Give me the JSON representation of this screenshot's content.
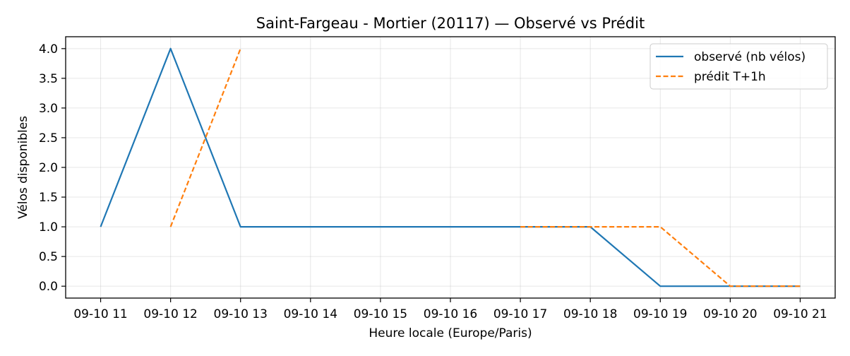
{
  "chart_data": {
    "type": "line",
    "title": "Saint-Fargeau - Mortier (20117) — Observé vs Prédit",
    "xlabel": "Heure locale (Europe/Paris)",
    "ylabel": "Vélos disponibles",
    "x_ticks": [
      "09-10 11",
      "09-10 12",
      "09-10 13",
      "09-10 14",
      "09-10 15",
      "09-10 16",
      "09-10 17",
      "09-10 18",
      "09-10 19",
      "09-10 20",
      "09-10 21"
    ],
    "y_ticks": [
      "0.0",
      "0.5",
      "1.0",
      "1.5",
      "2.0",
      "2.5",
      "3.0",
      "3.5",
      "4.0"
    ],
    "xlim": [
      "09-10 10:30",
      "09-10 21:30"
    ],
    "ylim": [
      -0.2,
      4.2
    ],
    "grid": true,
    "legend_position": "top-right",
    "series": [
      {
        "name": "observé (nb vélos)",
        "color": "#1f77b4",
        "style": "solid",
        "points": [
          {
            "x": "09-10 11",
            "y": 1
          },
          {
            "x": "09-10 12",
            "y": 4
          },
          {
            "x": "09-10 13",
            "y": 1
          },
          {
            "x": "09-10 14",
            "y": 1
          },
          {
            "x": "09-10 15",
            "y": 1
          },
          {
            "x": "09-10 16",
            "y": 1
          },
          {
            "x": "09-10 17",
            "y": 1
          },
          {
            "x": "09-10 18",
            "y": 1
          },
          {
            "x": "09-10 19",
            "y": 0
          },
          {
            "x": "09-10 20",
            "y": 0
          },
          {
            "x": "09-10 21",
            "y": 0
          }
        ]
      },
      {
        "name": "prédit T+1h",
        "color": "#ff7f0e",
        "style": "dashed",
        "segments": [
          [
            {
              "x": "09-10 12",
              "y": 1
            },
            {
              "x": "09-10 13",
              "y": 4
            }
          ],
          [
            {
              "x": "09-10 17",
              "y": 1
            },
            {
              "x": "09-10 18",
              "y": 1
            },
            {
              "x": "09-10 19",
              "y": 1
            },
            {
              "x": "09-10 20",
              "y": 0
            },
            {
              "x": "09-10 21",
              "y": 0
            }
          ]
        ]
      }
    ]
  }
}
